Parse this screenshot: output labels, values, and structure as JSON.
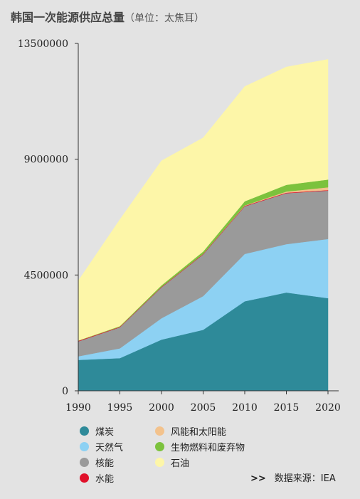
{
  "title": "韩国一次能源供应总量",
  "unit": "（单位：太焦耳）",
  "source": {
    "arrows": ">>",
    "label": "数据来源：IEA"
  },
  "chart_data": {
    "type": "area",
    "stacked": true,
    "title": "韩国一次能源供应总量",
    "x": [
      1990,
      1995,
      2000,
      2005,
      2010,
      2015,
      2020
    ],
    "ylim": [
      0,
      13500000
    ],
    "yticks": [
      0,
      4500000,
      9000000,
      13500000
    ],
    "ytick_labels": [
      "0",
      "4500000",
      "9000000",
      "13500000"
    ],
    "grid": false,
    "legend_position": "bottom",
    "series": [
      {
        "name": "煤炭",
        "color": "#2e8a99",
        "values": [
          1200000,
          1270000,
          1990000,
          2370000,
          3480000,
          3820000,
          3600000
        ]
      },
      {
        "name": "天然气",
        "color": "#8dd1f3",
        "values": [
          140000,
          380000,
          830000,
          1310000,
          1840000,
          1880000,
          2300000
        ]
      },
      {
        "name": "核能",
        "color": "#9a9a9a",
        "values": [
          580000,
          820000,
          1200000,
          1620000,
          1850000,
          1980000,
          1880000
        ]
      },
      {
        "name": "水能",
        "color": "#e0102a",
        "values": [
          25000,
          20000,
          20000,
          20000,
          20000,
          20000,
          20000
        ]
      },
      {
        "name": "风能和太阳能",
        "color": "#f3c28c",
        "values": [
          0,
          0,
          0,
          2000,
          15000,
          45000,
          110000
        ]
      },
      {
        "name": "生物燃料和废弃物",
        "color": "#7cc23d",
        "values": [
          10000,
          25000,
          60000,
          90000,
          160000,
          260000,
          300000
        ]
      },
      {
        "name": "石油",
        "color": "#fdf6a8",
        "values": [
          2320000,
          4140000,
          4840000,
          4420000,
          4460000,
          4580000,
          4670000
        ]
      }
    ]
  }
}
